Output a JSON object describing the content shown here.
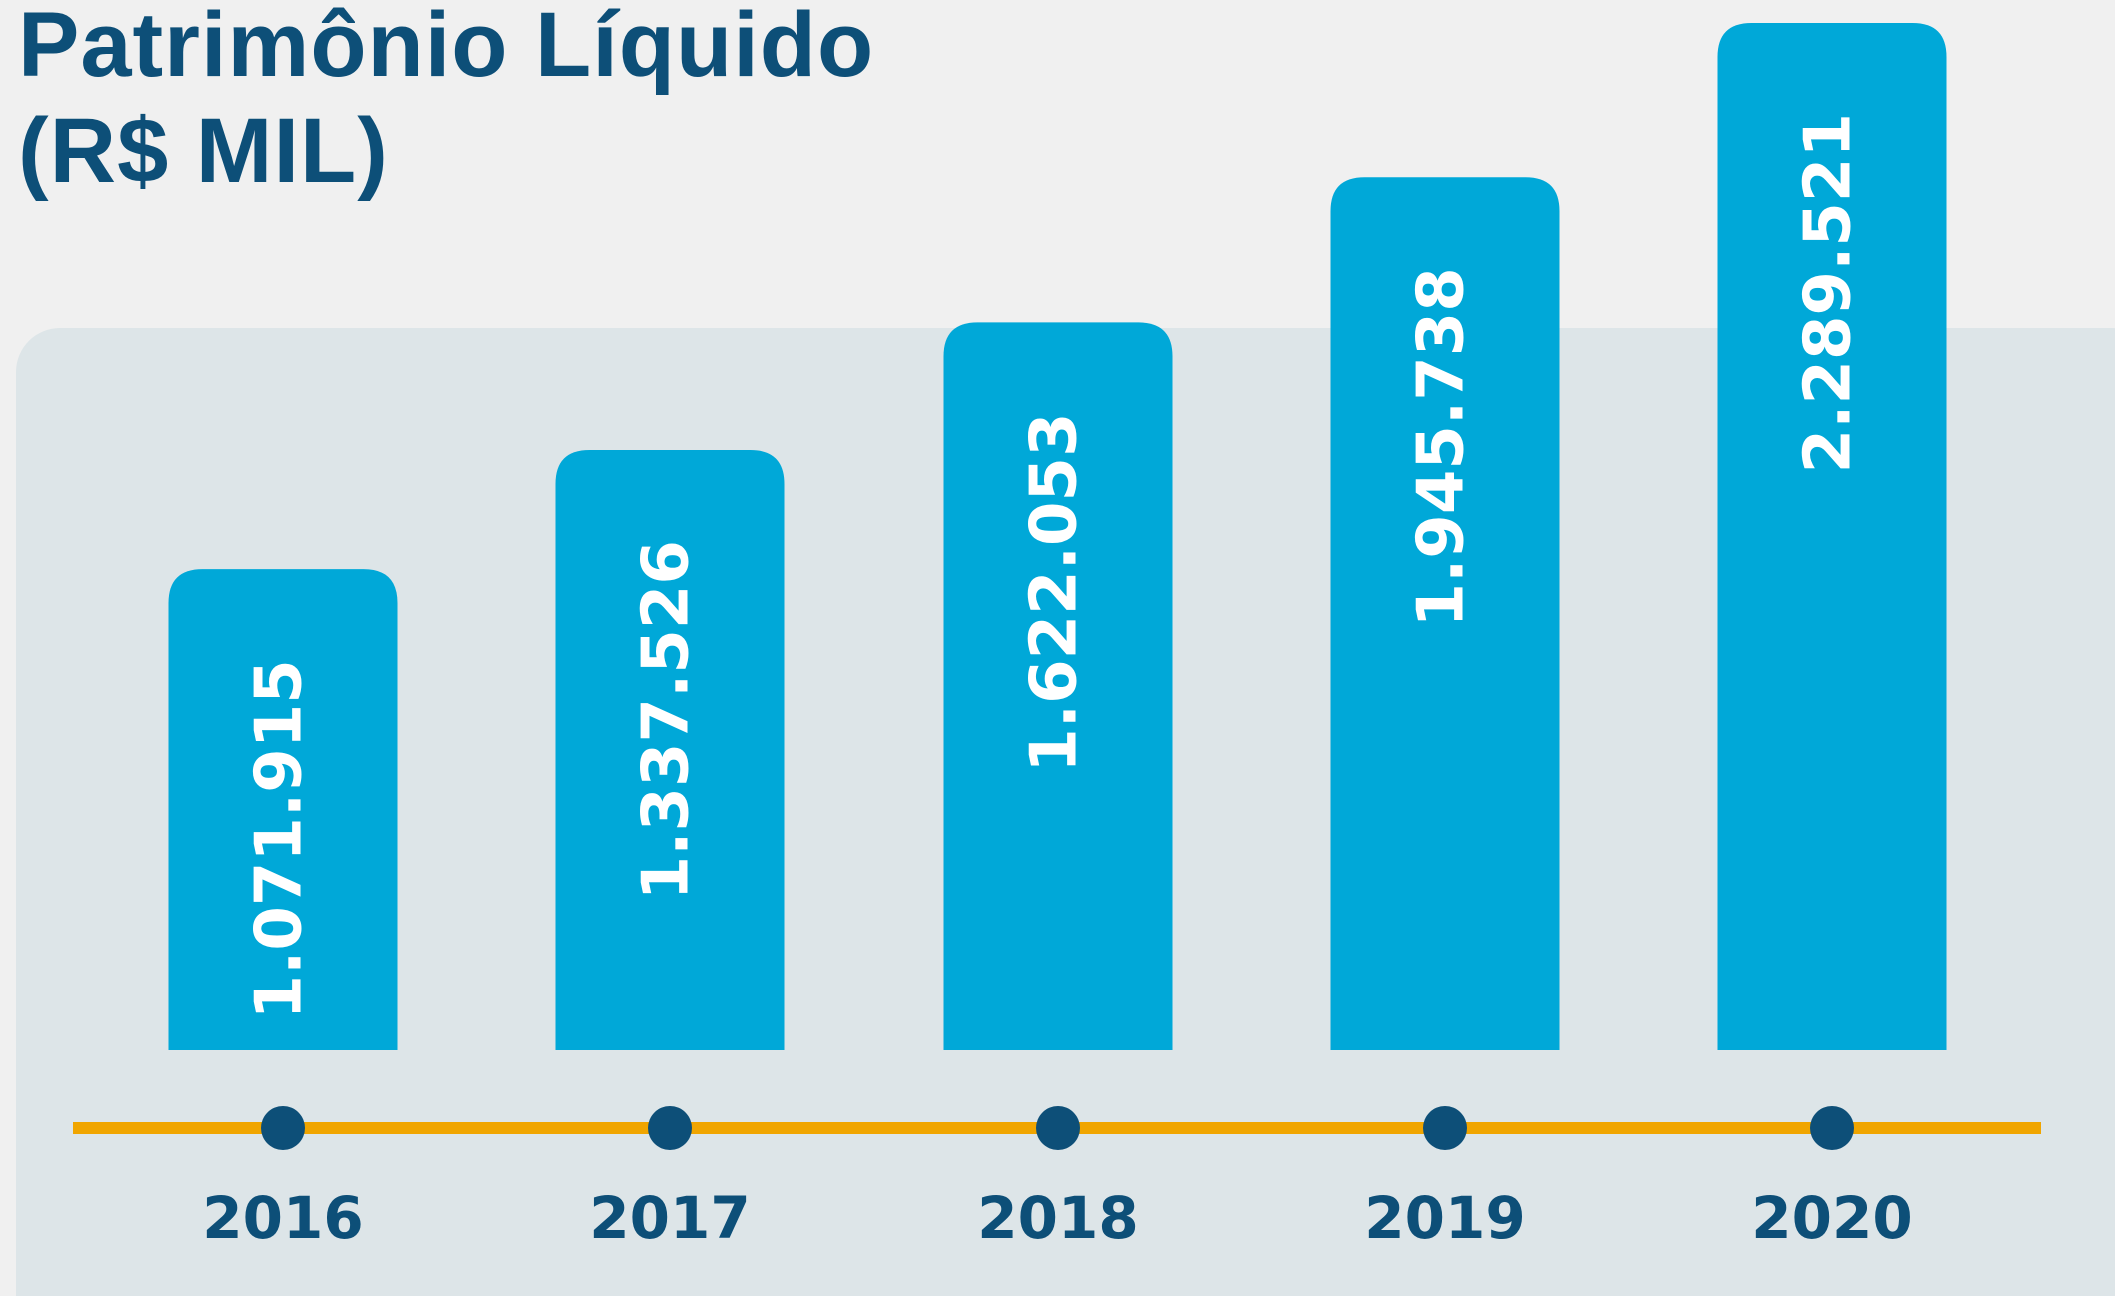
{
  "chart_data": {
    "type": "bar",
    "title": "Patrimônio Líquido (R$ MIL)",
    "categories": [
      "2016",
      "2017",
      "2018",
      "2019",
      "2020"
    ],
    "values": [
      1071915,
      1337526,
      1622053,
      1945738,
      2289521
    ],
    "value_labels": [
      "1.071.915",
      "1.337.526",
      "1.622.053",
      "1.945.738",
      "2.289.521"
    ],
    "color": "#00a8d8"
  }
}
